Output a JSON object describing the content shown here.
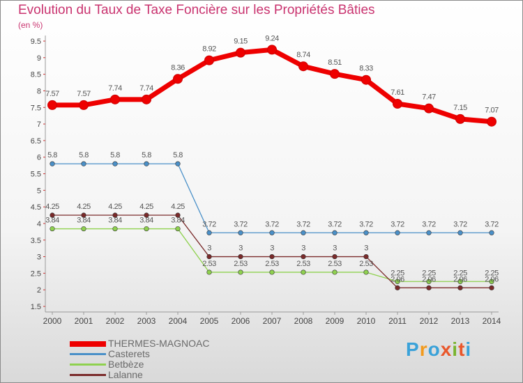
{
  "header": {
    "title": "Evolution du Taux de Taxe Foncière sur les Propriétés Bâties",
    "unit": "(en %)"
  },
  "logo": {
    "letters": [
      "P",
      "r",
      "o",
      "x",
      "i",
      "t",
      "i"
    ],
    "colors": [
      "#3aa2d9",
      "#f29a1d",
      "#3aa2d9",
      "#e9572b",
      "#7ab42f",
      "#e9572b",
      "#3aa2d9"
    ]
  },
  "chart_data": {
    "type": "line",
    "title": "Evolution du Taux de Taxe Foncière sur les Propriétés Bâties",
    "ylabel": "(en %)",
    "xlabel": "",
    "categories": [
      "2000",
      "2001",
      "2002",
      "2003",
      "2004",
      "2005",
      "2006",
      "2007",
      "2008",
      "2009",
      "2010",
      "2011",
      "2012",
      "2013",
      "2014"
    ],
    "ylim": [
      1.5,
      9.5
    ],
    "yticks": [
      "1.5",
      "2",
      "2.5",
      "3",
      "3.5",
      "4",
      "4.5",
      "5",
      "5.5",
      "6",
      "6.5",
      "7",
      "7.5",
      "8",
      "8.5",
      "9",
      "9.5"
    ],
    "series": [
      {
        "name": "THERMES-MAGNOAC",
        "color": "#ee0000",
        "values": [
          7.57,
          7.57,
          7.74,
          7.74,
          8.36,
          8.92,
          9.15,
          9.24,
          8.74,
          8.51,
          8.33,
          7.61,
          7.47,
          7.15,
          7.07
        ],
        "labels": [
          "7.57",
          "7.57",
          "7.74",
          "7.74",
          "8.36",
          "8.92",
          "9.15",
          "9.24",
          "8.74",
          "8.51",
          "8.33",
          "7.61",
          "7.47",
          "7.15",
          "7.07"
        ]
      },
      {
        "name": "Casterets",
        "color": "#4a90c8",
        "values": [
          5.8,
          5.8,
          5.8,
          5.8,
          5.8,
          3.72,
          3.72,
          3.72,
          3.72,
          3.72,
          3.72,
          3.72,
          3.72,
          3.72,
          3.72
        ],
        "labels": [
          "5.8",
          "5.8",
          "5.8",
          "5.8",
          "5.8",
          "3.72",
          "3.72",
          "3.72",
          "3.72",
          "3.72",
          "3.72",
          "3.72",
          "3.72",
          "3.72",
          "3.72"
        ]
      },
      {
        "name": "Betbèze",
        "color": "#8fd14f",
        "values": [
          3.84,
          3.84,
          3.84,
          3.84,
          3.84,
          2.53,
          2.53,
          2.53,
          2.53,
          2.53,
          2.53,
          2.25,
          2.25,
          2.25,
          2.25
        ],
        "labels": [
          "3.84",
          "3.84",
          "3.84",
          "3.84",
          "3.84",
          "2.53",
          "2.53",
          "2.53",
          "2.53",
          "2.53",
          "2.53",
          "2.25",
          "2.25",
          "2.25",
          "2.25"
        ]
      },
      {
        "name": "Lalanne",
        "color": "#7a2a2a",
        "values": [
          4.25,
          4.25,
          4.25,
          4.25,
          4.25,
          3,
          3,
          3,
          3,
          3,
          3,
          2.06,
          2.06,
          2.06,
          2.06
        ],
        "labels": [
          "4.25",
          "4.25",
          "4.25",
          "4.25",
          "4.25",
          "3",
          "3",
          "3",
          "3",
          "3",
          "3",
          "2.06",
          "2.06",
          "2.06",
          "2.06"
        ]
      }
    ],
    "legend": "bottom-left"
  }
}
